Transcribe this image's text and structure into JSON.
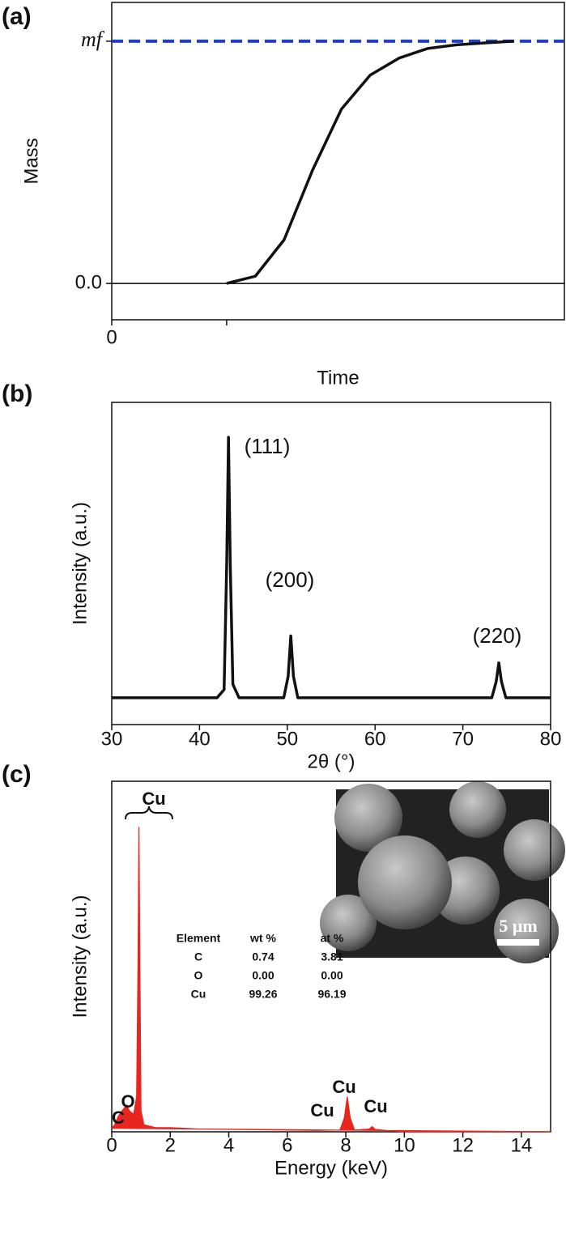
{
  "chart_data": [
    {
      "type": "line",
      "panel_label": "(a)",
      "xlabel": "Time",
      "ylabel": "Mass",
      "xlim": [
        0,
        3.94
      ],
      "xticks": [
        0,
        {
          "value": 1,
          "label": null
        }
      ],
      "ylim": [
        -0.15,
        1.16
      ],
      "yticks": [
        {
          "value": 0,
          "label": "0.0"
        },
        {
          "value": 1,
          "label": "mf"
        }
      ],
      "reference_lines": [
        {
          "value": 1,
          "color": "#1a3ee0",
          "dashed": true
        },
        {
          "value": 0,
          "color": "#000000",
          "dashed": false
        }
      ],
      "series": [
        {
          "color": "#111111",
          "x": [
            1.0,
            1.25,
            1.5,
            1.75,
            2.0,
            2.25,
            2.5,
            2.75,
            3.0,
            3.25,
            3.5
          ],
          "values": [
            0,
            0.03,
            0.18,
            0.47,
            0.72,
            0.86,
            0.93,
            0.97,
            0.985,
            0.993,
            1.0
          ]
        }
      ]
    },
    {
      "type": "line",
      "panel_label": "(b)",
      "xlabel": "2θ (°)",
      "ylabel": "Intensity (a.u.)",
      "xlim": [
        30,
        80
      ],
      "xticks": [
        30,
        40,
        50,
        60,
        70,
        80
      ],
      "ylim": [
        0,
        1.2
      ],
      "series": [
        {
          "color": "#111111",
          "x": [
            30,
            42,
            42.8,
            43.1,
            43.3,
            43.5,
            43.8,
            44.5,
            49.6,
            50.1,
            50.4,
            50.7,
            51.2,
            73.3,
            73.8,
            74.1,
            74.4,
            74.9,
            80
          ],
          "values": [
            0.1,
            0.1,
            0.13,
            0.6,
            1.07,
            0.6,
            0.15,
            0.1,
            0.1,
            0.18,
            0.33,
            0.18,
            0.1,
            0.1,
            0.16,
            0.23,
            0.16,
            0.1,
            0.1
          ]
        }
      ],
      "annotations": [
        "(111)",
        "(200)",
        "(220)"
      ]
    },
    {
      "type": "area",
      "panel_label": "(c)",
      "xlabel": "Energy (keV)",
      "ylabel": "Intensity (a.u.)",
      "xlim": [
        0,
        15
      ],
      "xticks": [
        0,
        2,
        4,
        6,
        8,
        10,
        12,
        14
      ],
      "ylim": [
        0,
        1
      ],
      "series": [
        {
          "color": "#e8251f",
          "x": [
            0,
            0.1,
            0.2,
            0.27,
            0.35,
            0.45,
            0.52,
            0.6,
            0.75,
            0.85,
            0.9,
            0.93,
            0.96,
            1.0,
            1.1,
            1.5,
            2.0,
            3,
            5,
            7,
            7.8,
            7.95,
            8.05,
            8.15,
            8.3,
            8.8,
            8.9,
            9.0,
            9.5,
            10,
            15
          ],
          "values": [
            0.01,
            0.02,
            0.04,
            0.05,
            0.06,
            0.07,
            0.076,
            0.06,
            0.05,
            0.1,
            0.5,
            0.87,
            0.5,
            0.06,
            0.02,
            0.012,
            0.012,
            0.008,
            0.006,
            0.004,
            0.005,
            0.04,
            0.1,
            0.04,
            0.005,
            0.008,
            0.015,
            0.007,
            0.003,
            0,
            0
          ]
        }
      ],
      "annotations": [
        "Cu",
        "C",
        "O",
        "Cu",
        "Cu",
        "Cu"
      ],
      "table": {
        "header": [
          "Element",
          "wt %",
          "at %"
        ],
        "rows": [
          [
            "C",
            "0.74",
            "3.81"
          ],
          [
            "O",
            "0.00",
            "0.00"
          ],
          [
            "Cu",
            "99.26",
            "96.19"
          ]
        ]
      },
      "inset": {
        "scale_label": "5 μm"
      }
    }
  ]
}
